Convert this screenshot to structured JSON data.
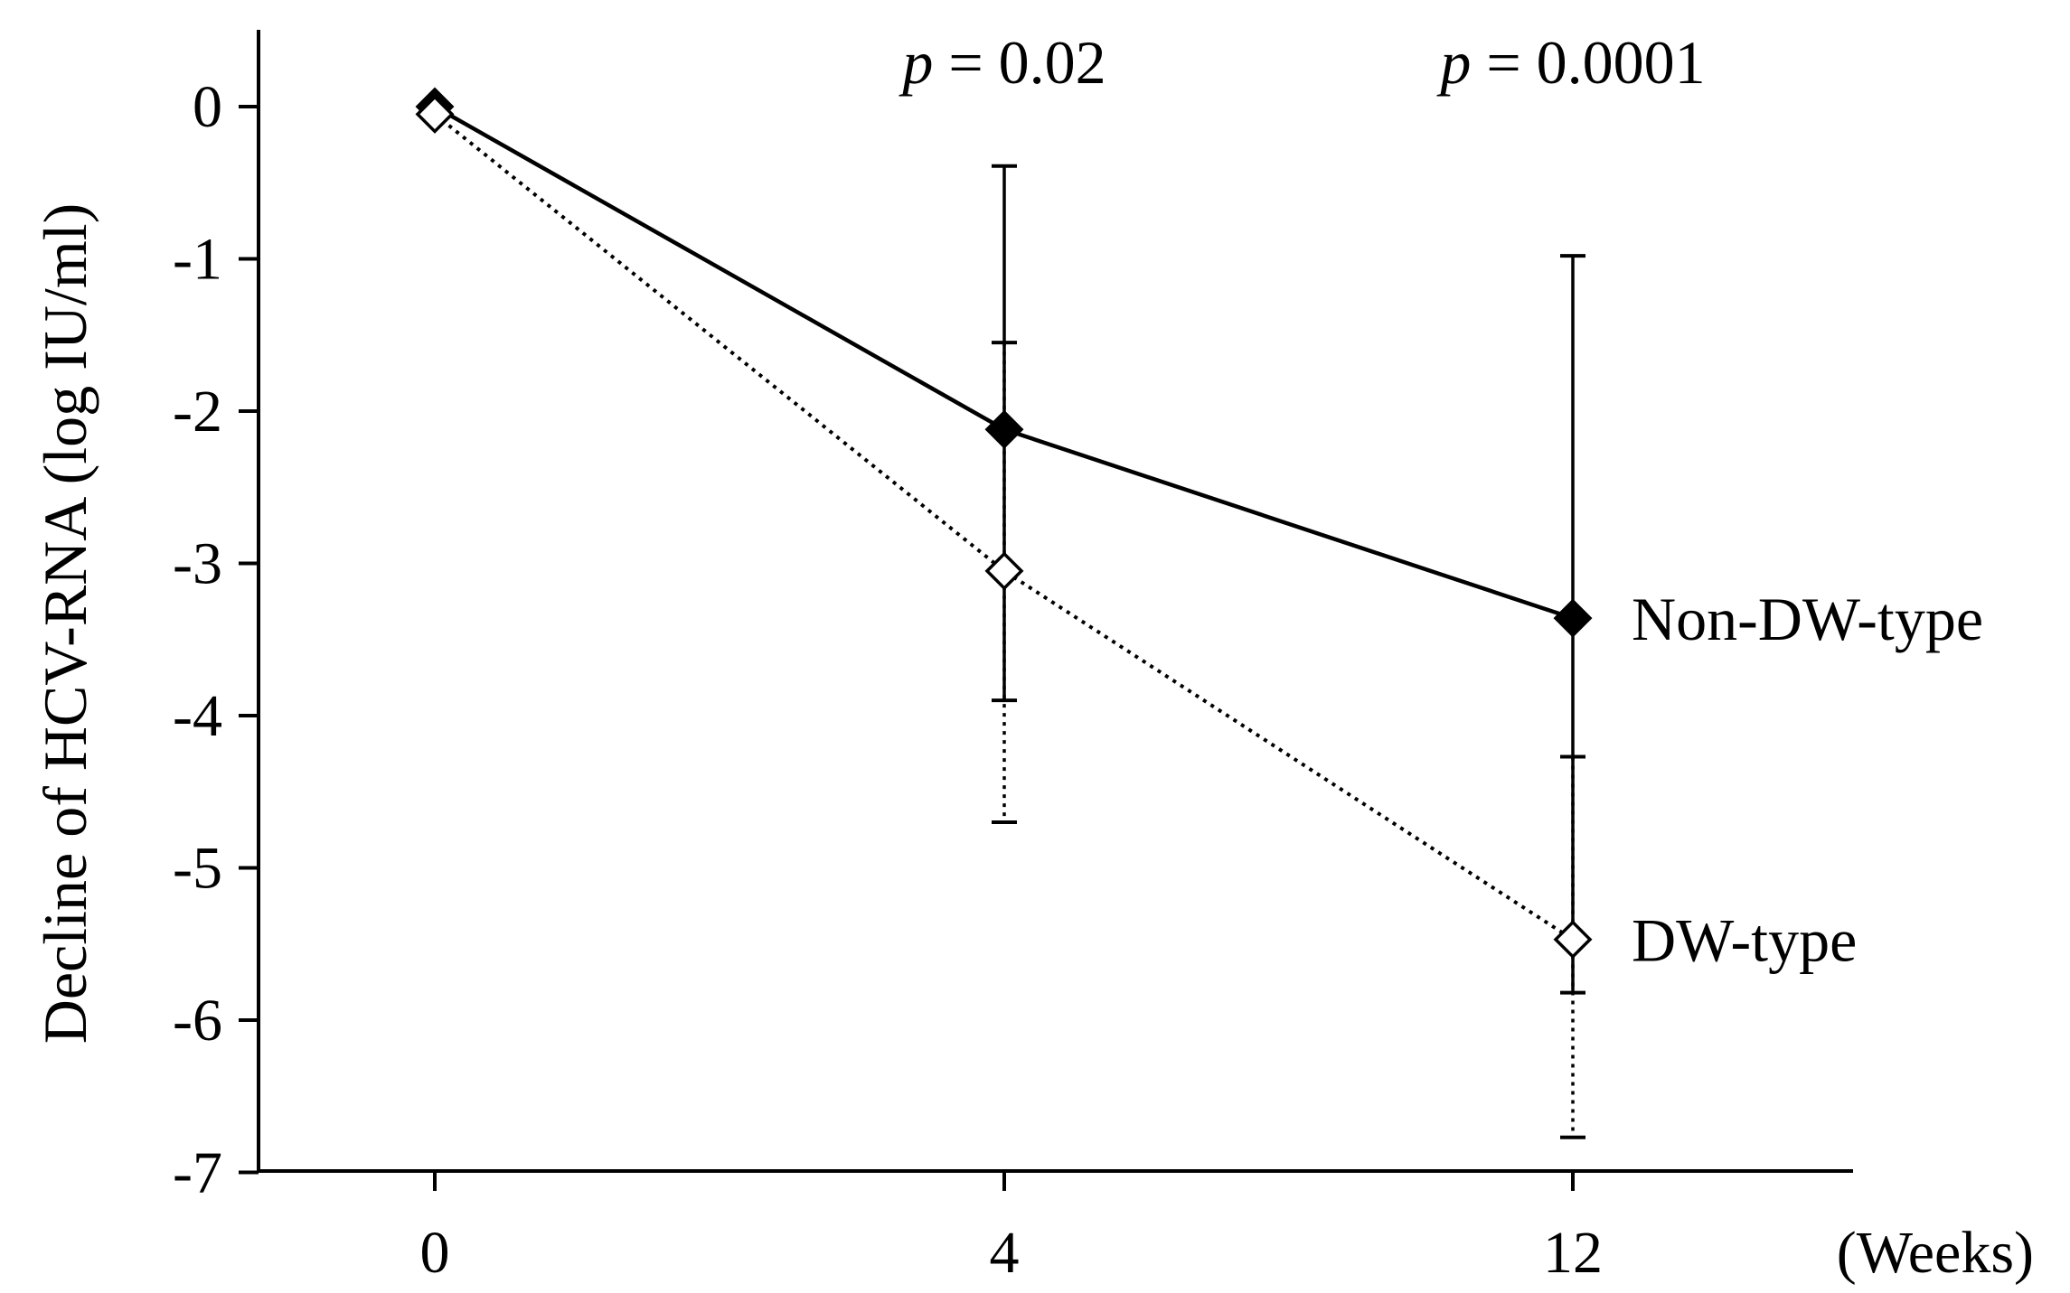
{
  "chart_data": {
    "type": "line",
    "title": "",
    "xlabel": "",
    "x_unit_label": "(Weeks)",
    "ylabel": "Decline of HCV-RNA (log IU/ml)",
    "x_categories": [
      "0",
      "4",
      "12"
    ],
    "ylim": [
      -7,
      0
    ],
    "yticks": [
      "0",
      "-1",
      "-2",
      "-3",
      "-4",
      "-5",
      "-6",
      "-7"
    ],
    "grid": false,
    "series": [
      {
        "name": "Non-DW-type",
        "values": [
          0,
          -2.12,
          -3.36
        ],
        "error_upper": [
          0,
          -0.39,
          -0.98
        ],
        "error_lower": [
          0,
          -3.9,
          -5.82
        ],
        "marker": "filled-diamond",
        "line": "solid",
        "color": "#000000"
      },
      {
        "name": "DW-type",
        "values": [
          -0.05,
          -3.05,
          -5.47
        ],
        "error_upper": [
          -0.05,
          -1.55,
          -4.27
        ],
        "error_lower": [
          -0.05,
          -4.7,
          -6.77
        ],
        "marker": "open-diamond",
        "line": "dotted",
        "color": "#000000"
      }
    ],
    "annotations": [
      {
        "x_index": 1,
        "p_symbol": "p",
        "value_text": "= 0.02"
      },
      {
        "x_index": 2,
        "p_symbol": "p",
        "value_text": "= 0.0001"
      }
    ]
  }
}
